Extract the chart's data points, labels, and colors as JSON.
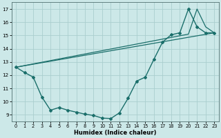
{
  "xlabel": "Humidex (Indice chaleur)",
  "bg_color": "#cce8e8",
  "grid_color": "#aacece",
  "line_color": "#1a6e6a",
  "xlim": [
    -0.5,
    23.5
  ],
  "ylim": [
    8.5,
    17.5
  ],
  "xticks": [
    0,
    1,
    2,
    3,
    4,
    5,
    6,
    7,
    8,
    9,
    10,
    11,
    12,
    13,
    14,
    15,
    16,
    17,
    18,
    19,
    20,
    21,
    22,
    23
  ],
  "yticks": [
    9,
    10,
    11,
    12,
    13,
    14,
    15,
    16,
    17
  ],
  "curve_x": [
    0,
    1,
    2,
    3,
    4,
    5,
    6,
    7,
    8,
    9,
    10,
    11,
    12,
    13,
    14,
    15,
    16,
    17,
    18,
    19,
    20,
    21,
    22,
    23
  ],
  "curve_y": [
    12.6,
    12.2,
    11.85,
    10.35,
    9.35,
    9.55,
    9.35,
    9.2,
    9.05,
    8.95,
    8.75,
    8.72,
    9.15,
    10.25,
    11.55,
    11.85,
    13.2,
    14.5,
    15.05,
    15.2,
    17.0,
    15.65,
    15.2,
    15.2
  ],
  "straight_line_x": [
    0,
    23
  ],
  "straight_line_y": [
    12.6,
    15.2
  ],
  "peak_line_x": [
    0,
    20,
    21,
    22,
    23
  ],
  "peak_line_y": [
    12.6,
    15.1,
    17.0,
    15.65,
    15.2
  ]
}
